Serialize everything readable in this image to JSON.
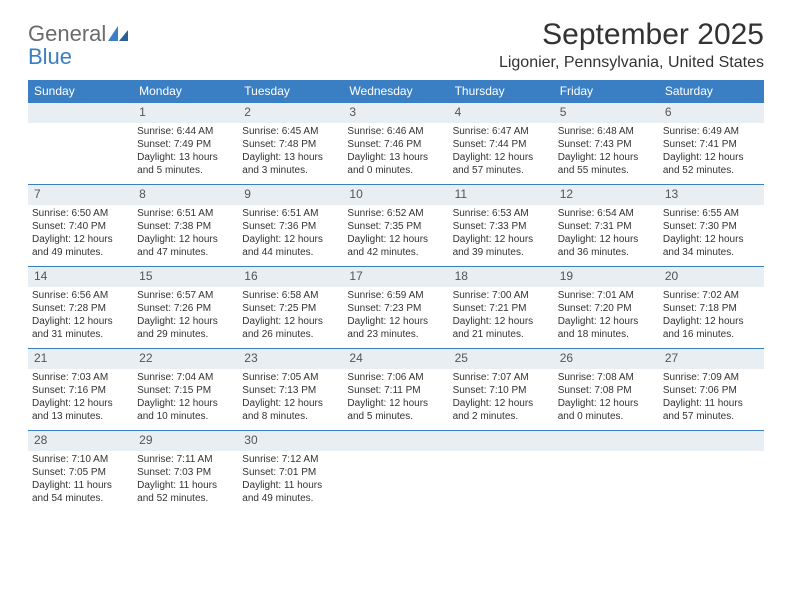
{
  "logo": {
    "text1": "General",
    "text2": "Blue"
  },
  "title": "September 2025",
  "location": "Ligonier, Pennsylvania, United States",
  "colors": {
    "header_bg": "#3a7fc4",
    "header_fg": "#ffffff",
    "dayrow_bg": "#e9eef2",
    "border": "#3a7fc4",
    "text": "#333333",
    "logo_gray": "#6b6b6b",
    "logo_blue": "#3a7fc4"
  },
  "fonts": {
    "month_title_pt": 30,
    "location_pt": 16,
    "weekday_pt": 12,
    "daynum_pt": 12,
    "body_pt": 10
  },
  "weekdays": [
    "Sunday",
    "Monday",
    "Tuesday",
    "Wednesday",
    "Thursday",
    "Friday",
    "Saturday"
  ],
  "weeks": [
    {
      "nums": [
        "",
        "1",
        "2",
        "3",
        "4",
        "5",
        "6"
      ],
      "cells": [
        null,
        {
          "sunrise": "Sunrise: 6:44 AM",
          "sunset": "Sunset: 7:49 PM",
          "daylight": "Daylight: 13 hours and 5 minutes."
        },
        {
          "sunrise": "Sunrise: 6:45 AM",
          "sunset": "Sunset: 7:48 PM",
          "daylight": "Daylight: 13 hours and 3 minutes."
        },
        {
          "sunrise": "Sunrise: 6:46 AM",
          "sunset": "Sunset: 7:46 PM",
          "daylight": "Daylight: 13 hours and 0 minutes."
        },
        {
          "sunrise": "Sunrise: 6:47 AM",
          "sunset": "Sunset: 7:44 PM",
          "daylight": "Daylight: 12 hours and 57 minutes."
        },
        {
          "sunrise": "Sunrise: 6:48 AM",
          "sunset": "Sunset: 7:43 PM",
          "daylight": "Daylight: 12 hours and 55 minutes."
        },
        {
          "sunrise": "Sunrise: 6:49 AM",
          "sunset": "Sunset: 7:41 PM",
          "daylight": "Daylight: 12 hours and 52 minutes."
        }
      ]
    },
    {
      "nums": [
        "7",
        "8",
        "9",
        "10",
        "11",
        "12",
        "13"
      ],
      "cells": [
        {
          "sunrise": "Sunrise: 6:50 AM",
          "sunset": "Sunset: 7:40 PM",
          "daylight": "Daylight: 12 hours and 49 minutes."
        },
        {
          "sunrise": "Sunrise: 6:51 AM",
          "sunset": "Sunset: 7:38 PM",
          "daylight": "Daylight: 12 hours and 47 minutes."
        },
        {
          "sunrise": "Sunrise: 6:51 AM",
          "sunset": "Sunset: 7:36 PM",
          "daylight": "Daylight: 12 hours and 44 minutes."
        },
        {
          "sunrise": "Sunrise: 6:52 AM",
          "sunset": "Sunset: 7:35 PM",
          "daylight": "Daylight: 12 hours and 42 minutes."
        },
        {
          "sunrise": "Sunrise: 6:53 AM",
          "sunset": "Sunset: 7:33 PM",
          "daylight": "Daylight: 12 hours and 39 minutes."
        },
        {
          "sunrise": "Sunrise: 6:54 AM",
          "sunset": "Sunset: 7:31 PM",
          "daylight": "Daylight: 12 hours and 36 minutes."
        },
        {
          "sunrise": "Sunrise: 6:55 AM",
          "sunset": "Sunset: 7:30 PM",
          "daylight": "Daylight: 12 hours and 34 minutes."
        }
      ]
    },
    {
      "nums": [
        "14",
        "15",
        "16",
        "17",
        "18",
        "19",
        "20"
      ],
      "cells": [
        {
          "sunrise": "Sunrise: 6:56 AM",
          "sunset": "Sunset: 7:28 PM",
          "daylight": "Daylight: 12 hours and 31 minutes."
        },
        {
          "sunrise": "Sunrise: 6:57 AM",
          "sunset": "Sunset: 7:26 PM",
          "daylight": "Daylight: 12 hours and 29 minutes."
        },
        {
          "sunrise": "Sunrise: 6:58 AM",
          "sunset": "Sunset: 7:25 PM",
          "daylight": "Daylight: 12 hours and 26 minutes."
        },
        {
          "sunrise": "Sunrise: 6:59 AM",
          "sunset": "Sunset: 7:23 PM",
          "daylight": "Daylight: 12 hours and 23 minutes."
        },
        {
          "sunrise": "Sunrise: 7:00 AM",
          "sunset": "Sunset: 7:21 PM",
          "daylight": "Daylight: 12 hours and 21 minutes."
        },
        {
          "sunrise": "Sunrise: 7:01 AM",
          "sunset": "Sunset: 7:20 PM",
          "daylight": "Daylight: 12 hours and 18 minutes."
        },
        {
          "sunrise": "Sunrise: 7:02 AM",
          "sunset": "Sunset: 7:18 PM",
          "daylight": "Daylight: 12 hours and 16 minutes."
        }
      ]
    },
    {
      "nums": [
        "21",
        "22",
        "23",
        "24",
        "25",
        "26",
        "27"
      ],
      "cells": [
        {
          "sunrise": "Sunrise: 7:03 AM",
          "sunset": "Sunset: 7:16 PM",
          "daylight": "Daylight: 12 hours and 13 minutes."
        },
        {
          "sunrise": "Sunrise: 7:04 AM",
          "sunset": "Sunset: 7:15 PM",
          "daylight": "Daylight: 12 hours and 10 minutes."
        },
        {
          "sunrise": "Sunrise: 7:05 AM",
          "sunset": "Sunset: 7:13 PM",
          "daylight": "Daylight: 12 hours and 8 minutes."
        },
        {
          "sunrise": "Sunrise: 7:06 AM",
          "sunset": "Sunset: 7:11 PM",
          "daylight": "Daylight: 12 hours and 5 minutes."
        },
        {
          "sunrise": "Sunrise: 7:07 AM",
          "sunset": "Sunset: 7:10 PM",
          "daylight": "Daylight: 12 hours and 2 minutes."
        },
        {
          "sunrise": "Sunrise: 7:08 AM",
          "sunset": "Sunset: 7:08 PM",
          "daylight": "Daylight: 12 hours and 0 minutes."
        },
        {
          "sunrise": "Sunrise: 7:09 AM",
          "sunset": "Sunset: 7:06 PM",
          "daylight": "Daylight: 11 hours and 57 minutes."
        }
      ]
    },
    {
      "nums": [
        "28",
        "29",
        "30",
        "",
        "",
        "",
        ""
      ],
      "cells": [
        {
          "sunrise": "Sunrise: 7:10 AM",
          "sunset": "Sunset: 7:05 PM",
          "daylight": "Daylight: 11 hours and 54 minutes."
        },
        {
          "sunrise": "Sunrise: 7:11 AM",
          "sunset": "Sunset: 7:03 PM",
          "daylight": "Daylight: 11 hours and 52 minutes."
        },
        {
          "sunrise": "Sunrise: 7:12 AM",
          "sunset": "Sunset: 7:01 PM",
          "daylight": "Daylight: 11 hours and 49 minutes."
        },
        null,
        null,
        null,
        null
      ]
    }
  ]
}
